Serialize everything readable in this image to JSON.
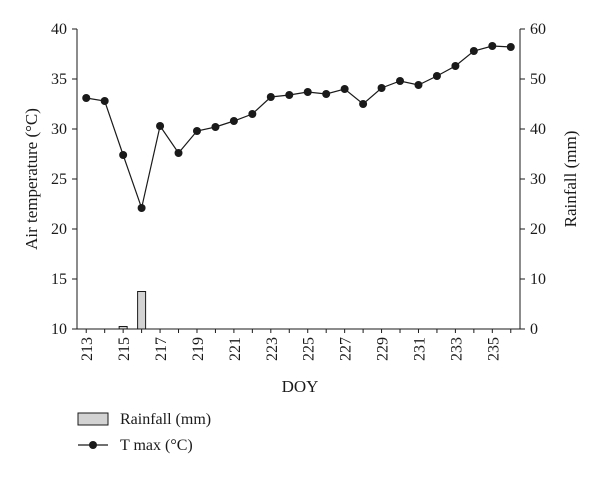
{
  "chart_data": {
    "type": "line",
    "xlabel": "DOY",
    "ylabel_left": "Air temperature (°C)",
    "ylabel_right": "Rainfall (mm)",
    "x_range": [
      213,
      236
    ],
    "y_left_range": [
      10,
      40
    ],
    "y_right_range": [
      0,
      60
    ],
    "x_ticks": [
      213,
      215,
      217,
      219,
      221,
      223,
      225,
      227,
      229,
      231,
      233,
      235
    ],
    "y_left_ticks": [
      10,
      15,
      20,
      25,
      30,
      35,
      40
    ],
    "y_right_ticks": [
      0,
      10,
      20,
      30,
      40,
      50,
      60
    ],
    "grid": false,
    "legend_position": "bottom-left",
    "series": [
      {
        "name": "T max (°C)",
        "type": "line",
        "axis": "left",
        "color": "#1a1a1a",
        "x": [
          213,
          214,
          215,
          216,
          217,
          218,
          219,
          220,
          221,
          222,
          223,
          224,
          225,
          226,
          227,
          228,
          229,
          230,
          231,
          232,
          233,
          234,
          235,
          236
        ],
        "values": [
          33.1,
          32.8,
          27.4,
          22.1,
          30.3,
          27.6,
          29.8,
          30.2,
          30.8,
          31.5,
          33.2,
          33.4,
          33.7,
          33.5,
          34.0,
          32.5,
          34.1,
          34.8,
          34.4,
          35.3,
          36.3,
          37.8,
          38.3,
          38.2
        ]
      },
      {
        "name": "Rainfall (mm)",
        "type": "bar",
        "axis": "right",
        "color": "#d3d3d3",
        "x": [
          215,
          216
        ],
        "values": [
          0.5,
          7.5
        ]
      }
    ]
  }
}
